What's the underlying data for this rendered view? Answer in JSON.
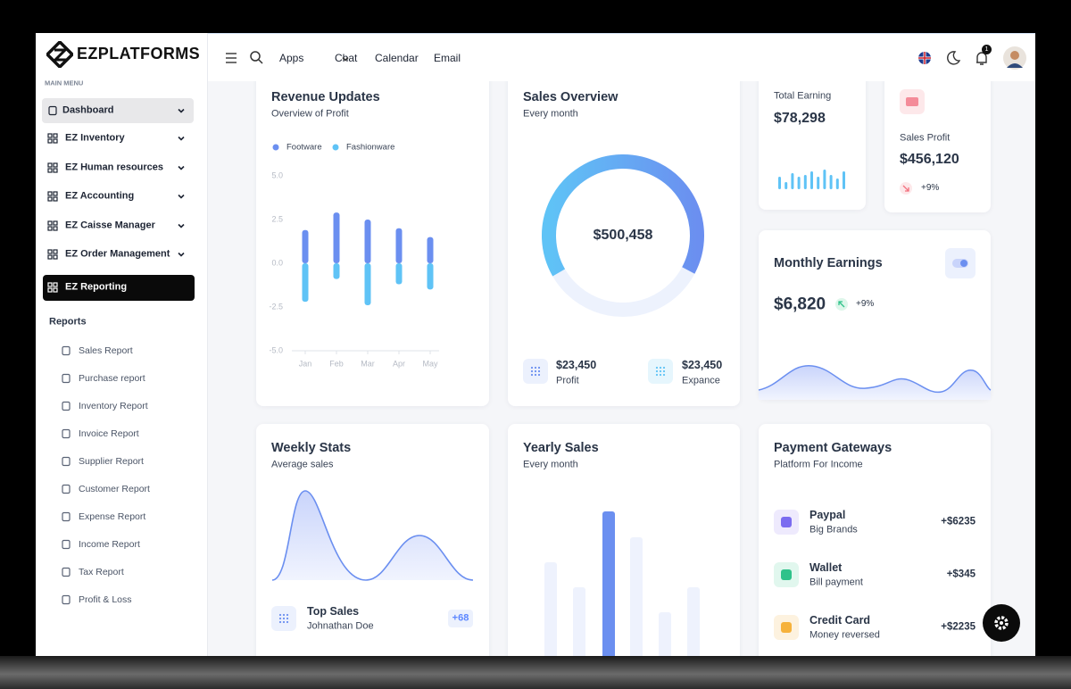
{
  "brand": "EZPLATFORMS",
  "sidebar": {
    "section_label": "MAIN MENU",
    "menu": [
      "Dashboard",
      "EZ Inventory",
      "EZ Human resources",
      "EZ Accounting",
      "EZ Caisse Manager",
      "EZ Order Management",
      "EZ Reporting"
    ],
    "submenu_title": "Reports",
    "reports": [
      "Sales Report",
      "Purchase report",
      "Inventory Report",
      "Invoice Report",
      "Supplier Report",
      "Customer Report",
      "Expense Report",
      "Income Report",
      "Tax Report",
      "Profit & Loss"
    ]
  },
  "topbar": {
    "nav": [
      "Apps",
      "Chat",
      "Calendar",
      "Email"
    ],
    "notifications": 1
  },
  "revenue": {
    "title": "Revenue Updates",
    "subtitle": "Overview of Profit",
    "chart": {
      "type": "bar",
      "categories": [
        "Jan",
        "Feb",
        "Mar",
        "Apr",
        "May"
      ],
      "ylim": [
        -5,
        5
      ],
      "yticks": [
        {
          "value": 5,
          "label": "5.0"
        },
        2.5,
        {
          "value": 0,
          "label": "0.0"
        },
        -2.5,
        {
          "value": -5,
          "label": "-5.0"
        }
      ],
      "series": [
        {
          "name": "Footware",
          "color": "#6b8ff0",
          "values": [
            1.9,
            2.9,
            2.5,
            2.0,
            1.5
          ]
        },
        {
          "name": "Fashionware",
          "color": "#5fc3f6",
          "values": [
            -2.2,
            -0.9,
            -2.4,
            -1.2,
            -1.5
          ]
        }
      ]
    }
  },
  "sales_overview": {
    "title": "Sales Overview",
    "subtitle": "Every month",
    "total": "$500,458",
    "stats": [
      {
        "amount": "$23,450",
        "label": "Profit"
      },
      {
        "amount": "$23,450",
        "label": "Expance"
      }
    ]
  },
  "total_earning": {
    "label": "Total Earning",
    "amount": "$78,298"
  },
  "sales_profit": {
    "label": "Sales Profit",
    "amount": "$456,120",
    "change": "+9%"
  },
  "monthly_earnings": {
    "title": "Monthly Earnings",
    "amount": "$6,820",
    "change": "+9%"
  },
  "weekly_stats": {
    "title": "Weekly Stats",
    "subtitle": "Average sales",
    "top_sales": {
      "title": "Top Sales",
      "name": "Johnathan Doe",
      "badge": "+68"
    }
  },
  "yearly_sales": {
    "title": "Yearly Sales",
    "subtitle": "Every month"
  },
  "payment_gateways": {
    "title": "Payment Gateways",
    "subtitle": "Platform For Income",
    "items": [
      {
        "name": "Paypal",
        "note": "Big Brands",
        "amount": "+$6235",
        "color": "#7b6cf0",
        "bg": "#eeeafd"
      },
      {
        "name": "Wallet",
        "note": "Bill payment",
        "amount": "+$345",
        "color": "#2fc28a",
        "bg": "#e1f7ee"
      },
      {
        "name": "Credit Card",
        "note": "Money reversed",
        "amount": "+$2235",
        "color": "#f6b23c",
        "bg": "#fdf2df"
      }
    ]
  }
}
